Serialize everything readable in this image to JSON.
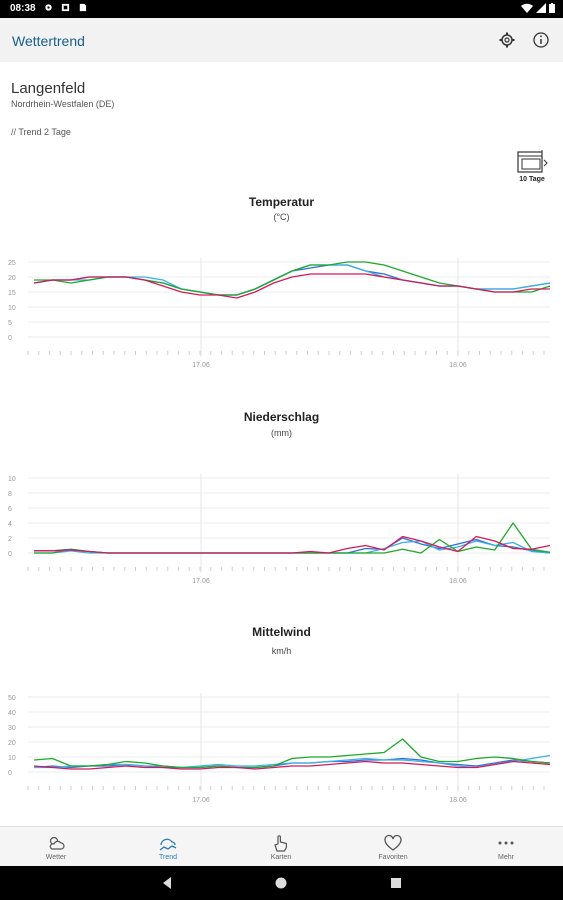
{
  "status_bar": {
    "time": "08:38"
  },
  "app_bar": {
    "title": "Wettertrend",
    "settings_icon": "gear-icon",
    "info_icon": "info-icon"
  },
  "location": {
    "name": "Langenfeld",
    "region": "Nordrhein-Westfalen (DE)"
  },
  "trend_link": "// Trend 2 Tage",
  "days_button": {
    "label": "10 Tage"
  },
  "colors": {
    "model_1": "#2f6fd6",
    "model_2": "#3bb0e6",
    "model_3": "#1fa82a",
    "model_4": "#d6195a"
  },
  "charts": [
    {
      "id": "temperature",
      "title": "Temperatur",
      "unit": "(°C)",
      "y_ticks": [
        "0",
        "5",
        "10",
        "15",
        "20",
        "25"
      ],
      "x_ticks": [
        "17.06",
        "18.06"
      ]
    },
    {
      "id": "precipitation",
      "title": "Niederschlag",
      "unit": "(mm)",
      "y_ticks": [
        "0",
        "2",
        "4",
        "6",
        "8",
        "10"
      ],
      "x_ticks": [
        "17.06",
        "18.06"
      ]
    },
    {
      "id": "wind",
      "title": "Mittelwind",
      "unit": "km/h",
      "y_ticks": [
        "0",
        "10",
        "20",
        "30",
        "40",
        "50"
      ],
      "x_ticks": [
        "17.06",
        "18.06"
      ]
    }
  ],
  "chart_data": [
    {
      "type": "line",
      "title": "Temperatur",
      "ylabel": "(°C)",
      "ylim": [
        0,
        25
      ],
      "y_ticks": [
        0,
        5,
        10,
        15,
        20,
        25
      ],
      "x_ticks": [
        "17.06",
        "18.06"
      ],
      "grid": true,
      "series": [
        {
          "color": "#2f6fd6",
          "values": [
            18,
            19,
            19,
            20,
            20,
            20,
            19,
            18,
            16,
            15,
            14,
            14,
            16,
            19,
            22,
            23,
            24,
            24,
            22,
            21,
            19,
            18,
            17,
            17,
            16,
            16,
            16,
            17,
            18
          ]
        },
        {
          "color": "#3bb0e6",
          "values": [
            18,
            19,
            19,
            19,
            20,
            20,
            20,
            19,
            16,
            15,
            14,
            14,
            16,
            19,
            22,
            24,
            24,
            24,
            22,
            20,
            19,
            18,
            17,
            17,
            16,
            16,
            16,
            17,
            18
          ]
        },
        {
          "color": "#1fa82a",
          "values": [
            19,
            19,
            18,
            19,
            20,
            20,
            19,
            18,
            16,
            15,
            14,
            14,
            16,
            19,
            22,
            24,
            24,
            25,
            25,
            24,
            22,
            20,
            18,
            17,
            16,
            15,
            15,
            15,
            17
          ]
        },
        {
          "color": "#d6195a",
          "values": [
            18,
            19,
            19,
            20,
            20,
            20,
            19,
            17,
            15,
            14,
            14,
            13,
            15,
            18,
            20,
            21,
            21,
            21,
            21,
            20,
            19,
            18,
            17,
            17,
            16,
            15,
            15,
            16,
            16
          ]
        }
      ]
    },
    {
      "type": "line",
      "title": "Niederschlag",
      "ylabel": "(mm)",
      "ylim": [
        0,
        10
      ],
      "y_ticks": [
        0,
        2,
        4,
        6,
        8,
        10
      ],
      "x_ticks": [
        "17.06",
        "18.06"
      ],
      "grid": true,
      "series": [
        {
          "color": "#2f6fd6",
          "values": [
            0.3,
            0.3,
            0.5,
            0.2,
            0,
            0,
            0,
            0,
            0,
            0,
            0,
            0,
            0,
            0,
            0,
            0,
            0,
            0,
            0.6,
            0.5,
            2.0,
            1.2,
            0.6,
            1.2,
            1.8,
            1.0,
            0.8,
            0.3,
            0
          ]
        },
        {
          "color": "#3bb0e6",
          "values": [
            0,
            0,
            0.3,
            0,
            0,
            0,
            0,
            0,
            0,
            0,
            0,
            0,
            0,
            0,
            0,
            0,
            0,
            0,
            0,
            0.6,
            1.4,
            1.6,
            0.4,
            0.8,
            1.6,
            1.0,
            1.4,
            0.2,
            0
          ]
        },
        {
          "color": "#1fa82a",
          "values": [
            0,
            0,
            0.5,
            0.2,
            0,
            0,
            0,
            0,
            0,
            0,
            0,
            0,
            0,
            0,
            0,
            0,
            0,
            0,
            0,
            0,
            0.5,
            0,
            1.8,
            0.2,
            0.8,
            0.4,
            4.0,
            0.5,
            0.1
          ]
        },
        {
          "color": "#d6195a",
          "values": [
            0.3,
            0.3,
            0.4,
            0.2,
            0,
            0,
            0,
            0,
            0,
            0,
            0,
            0,
            0,
            0,
            0,
            0.2,
            0,
            0.6,
            1.0,
            0.4,
            2.2,
            1.6,
            0.8,
            0.2,
            2.2,
            1.6,
            0.6,
            0.5,
            1.0
          ]
        }
      ]
    },
    {
      "type": "line",
      "title": "Mittelwind",
      "ylabel": "km/h",
      "ylim": [
        0,
        50
      ],
      "y_ticks": [
        0,
        10,
        20,
        30,
        40,
        50
      ],
      "x_ticks": [
        "17.06",
        "18.06"
      ],
      "grid": true,
      "series": [
        {
          "color": "#2f6fd6",
          "values": [
            3,
            4,
            3,
            4,
            4,
            5,
            4,
            3,
            3,
            3,
            4,
            3,
            3,
            4,
            6,
            6,
            7,
            7,
            8,
            8,
            9,
            8,
            6,
            5,
            4,
            6,
            8,
            7,
            6
          ]
        },
        {
          "color": "#3bb0e6",
          "values": [
            3,
            3,
            4,
            4,
            5,
            5,
            4,
            4,
            3,
            4,
            5,
            4,
            4,
            5,
            6,
            6,
            7,
            8,
            9,
            8,
            8,
            7,
            6,
            4,
            3,
            5,
            7,
            9,
            11
          ]
        },
        {
          "color": "#1fa82a",
          "values": [
            8,
            9,
            4,
            4,
            5,
            7,
            6,
            4,
            3,
            3,
            4,
            3,
            3,
            4,
            9,
            10,
            10,
            11,
            12,
            13,
            22,
            10,
            7,
            7,
            9,
            10,
            9,
            7,
            6
          ]
        },
        {
          "color": "#d6195a",
          "values": [
            4,
            3,
            2,
            2,
            3,
            4,
            3,
            3,
            2,
            2,
            3,
            3,
            2,
            3,
            4,
            4,
            5,
            6,
            7,
            6,
            6,
            5,
            4,
            3,
            3,
            5,
            7,
            6,
            5
          ]
        }
      ]
    }
  ],
  "nav": [
    {
      "label": "Wetter",
      "icon": "weather-icon"
    },
    {
      "label": "Trend",
      "icon": "trend-icon"
    },
    {
      "label": "Karten",
      "icon": "map-hand-icon"
    },
    {
      "label": "Favoriten",
      "icon": "heart-icon"
    },
    {
      "label": "Mehr",
      "icon": "more-icon"
    }
  ],
  "system_nav": [
    "back-icon",
    "home-icon",
    "recents-icon"
  ]
}
